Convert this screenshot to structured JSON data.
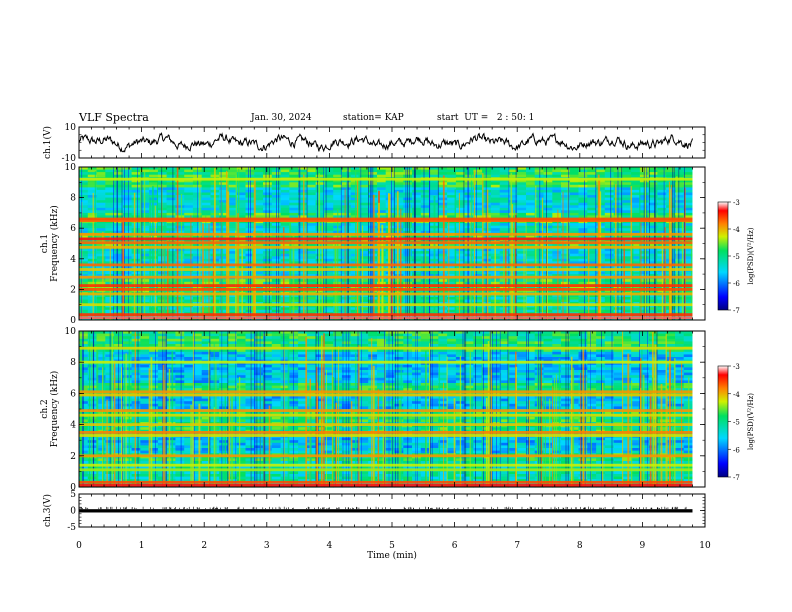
{
  "header": {
    "title": "VLF Spectra",
    "date": "Jan. 30, 2024",
    "station": "station= KAP",
    "start": "start  UT =   2 : 50: 1"
  },
  "chart_data": [
    {
      "type": "line",
      "panel": "ch1-waveform",
      "ylabel": "ch.1(V)",
      "ylim": [
        -10,
        10
      ],
      "yticks": [
        "10",
        "-10"
      ],
      "xlim": [
        0,
        10
      ],
      "x_end": 9.8,
      "description_values": "noisy waveform oscillating roughly between -6 and 6 V"
    },
    {
      "type": "heatmap",
      "panel": "ch1-spectrogram",
      "ylabel": "ch.1 Frequency (kHz)",
      "ylim": [
        0,
        10
      ],
      "yticks": [
        "0",
        "2",
        "4",
        "6",
        "8",
        "10"
      ],
      "xlim": [
        0,
        10
      ],
      "x_end": 9.8,
      "colorbar": {
        "label": "log(PSD)(V²/Hz)",
        "range": [
          -7,
          -3
        ],
        "ticks": [
          "-3",
          "-4",
          "-5",
          "-6",
          "-7"
        ]
      },
      "bands_khz": [
        {
          "f": 0.15,
          "level": -3.2
        },
        {
          "f": 0.35,
          "level": -3.5
        },
        {
          "f": 1.0,
          "level": -4.2
        },
        {
          "f": 1.7,
          "level": -4.0
        },
        {
          "f": 2.0,
          "level": -3.6
        },
        {
          "f": 2.25,
          "level": -3.5
        },
        {
          "f": 2.8,
          "level": -3.9
        },
        {
          "f": 3.3,
          "level": -4.1
        },
        {
          "f": 3.6,
          "level": -3.7
        },
        {
          "f": 4.75,
          "level": -4.0
        },
        {
          "f": 5.05,
          "level": -3.7
        },
        {
          "f": 5.3,
          "level": -3.3
        },
        {
          "f": 5.6,
          "level": -3.9
        },
        {
          "f": 6.5,
          "level": -3.7
        },
        {
          "f": 6.6,
          "level": -3.6
        },
        {
          "f": 9.2,
          "level": -4.3
        }
      ]
    },
    {
      "type": "heatmap",
      "panel": "ch2-spectrogram",
      "ylabel": "ch.2 Frequency (kHz)",
      "ylim": [
        0,
        10
      ],
      "yticks": [
        "0",
        "2",
        "4",
        "6",
        "8",
        "10"
      ],
      "xlim": [
        0,
        10
      ],
      "x_end": 9.8,
      "colorbar": {
        "label": "log(PSD)(V²/Hz)",
        "range": [
          -7,
          -3
        ],
        "ticks": [
          "-3",
          "-4",
          "-5",
          "-6",
          "-7"
        ]
      },
      "bands_khz": [
        {
          "f": 0.1,
          "level": -3.3
        },
        {
          "f": 0.3,
          "level": -3.6
        },
        {
          "f": 1.1,
          "level": -4.4
        },
        {
          "f": 1.4,
          "level": -4.3
        },
        {
          "f": 2.0,
          "level": -3.9
        },
        {
          "f": 3.3,
          "level": -4.2
        },
        {
          "f": 3.5,
          "level": -3.8
        },
        {
          "f": 4.0,
          "level": -4.1
        },
        {
          "f": 4.6,
          "level": -4.2
        },
        {
          "f": 4.9,
          "level": -3.9
        },
        {
          "f": 5.9,
          "level": -4.1
        },
        {
          "f": 6.1,
          "level": -3.9
        },
        {
          "f": 8.0,
          "level": -4.3
        },
        {
          "f": 8.9,
          "level": -4.2
        }
      ]
    },
    {
      "type": "line",
      "panel": "ch3-waveform",
      "ylabel": "ch.3(V)",
      "ylim": [
        -5,
        5
      ],
      "yticks": [
        "5",
        "0",
        "-5"
      ],
      "xlabel": "Time  (min)",
      "xlim": [
        0,
        10
      ],
      "xticks": [
        "0",
        "1",
        "2",
        "3",
        "4",
        "5",
        "6",
        "7",
        "8",
        "9",
        "10"
      ],
      "x_end": 9.8,
      "baseline_v": 0,
      "description_values": "dense pulse train around 0 V, spanning about -0.6 to 0.4 V"
    }
  ]
}
